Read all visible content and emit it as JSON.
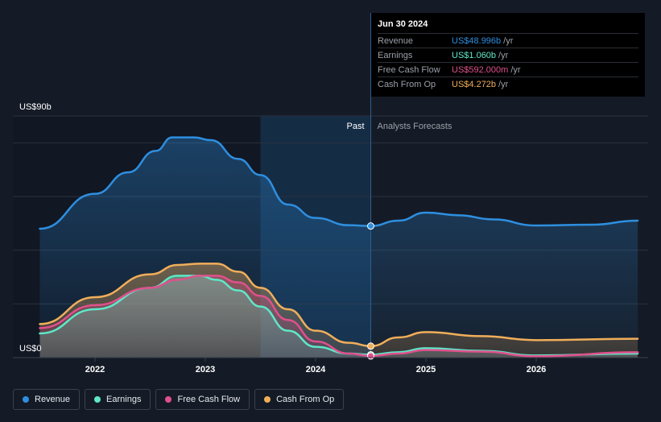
{
  "tooltip": {
    "date": "Jun 30 2024",
    "rows": [
      {
        "label": "Revenue",
        "value": "US$48.996b",
        "unit": "/yr",
        "color": "#2e8fe0"
      },
      {
        "label": "Earnings",
        "value": "US$1.060b",
        "unit": "/yr",
        "color": "#5ee8c8"
      },
      {
        "label": "Free Cash Flow",
        "value": "US$592.000m",
        "unit": "/yr",
        "color": "#e0508c"
      },
      {
        "label": "Cash From Op",
        "value": "US$4.272b",
        "unit": "/yr",
        "color": "#f0ae5a"
      }
    ]
  },
  "labels": {
    "past": "Past",
    "forecast": "Analysts Forecasts"
  },
  "legend": [
    {
      "label": "Revenue",
      "color": "#2e8fe0"
    },
    {
      "label": "Earnings",
      "color": "#5ee8c8"
    },
    {
      "label": "Free Cash Flow",
      "color": "#e0508c"
    },
    {
      "label": "Cash From Op",
      "color": "#f0ae5a"
    }
  ],
  "chart_data": {
    "type": "line",
    "x_range": [
      2021.5,
      2026.92
    ],
    "ylim": [
      0,
      90
    ],
    "y_tick_labels": [
      {
        "value": 90,
        "label": "US$90b"
      },
      {
        "value": 0,
        "label": "US$0"
      }
    ],
    "x_ticks": [
      2022,
      2023,
      2024,
      2025,
      2026
    ],
    "x_tick_labels": [
      "2022",
      "2023",
      "2024",
      "2025",
      "2026"
    ],
    "grid": true,
    "past_forecast_divider": 2024.5,
    "highlight_start": 2023.5,
    "series": [
      {
        "name": "Revenue",
        "color": "#2e8fe0",
        "filled": true,
        "x": [
          2021.5,
          2022.0,
          2022.3,
          2022.55,
          2022.7,
          2022.9,
          2023.05,
          2023.3,
          2023.5,
          2023.75,
          2024.0,
          2024.3,
          2024.5,
          2024.75,
          2025.0,
          2025.3,
          2025.6,
          2026.0,
          2026.5,
          2026.92
        ],
        "y": [
          48,
          61,
          69,
          77,
          82,
          82,
          81,
          74,
          68,
          57,
          52,
          49.3,
          49,
          51,
          54,
          53,
          51.5,
          49.2,
          49.5,
          51
        ]
      },
      {
        "name": "Earnings",
        "color": "#5ee8c8",
        "filled": true,
        "x": [
          2021.5,
          2022.0,
          2022.5,
          2022.75,
          2022.95,
          2023.1,
          2023.3,
          2023.5,
          2023.75,
          2024.0,
          2024.3,
          2024.5,
          2024.75,
          2025.0,
          2025.5,
          2026.0,
          2026.92
        ],
        "y": [
          9,
          18,
          26,
          30.5,
          30.5,
          29,
          25,
          19,
          10,
          4,
          1.5,
          1.06,
          2,
          3.5,
          2.5,
          0.8,
          1.5
        ]
      },
      {
        "name": "Free Cash Flow",
        "color": "#e0508c",
        "filled": true,
        "x": [
          2021.5,
          2022.0,
          2022.5,
          2022.75,
          2022.95,
          2023.1,
          2023.3,
          2023.5,
          2023.75,
          2024.0,
          2024.3,
          2024.5,
          2024.75,
          2025.0,
          2025.5,
          2026.0,
          2026.92
        ],
        "y": [
          11,
          19.5,
          26,
          29,
          30.5,
          30.5,
          28,
          23,
          14,
          6,
          1.5,
          0.59,
          1.5,
          2.8,
          2.2,
          0.5,
          2
        ]
      },
      {
        "name": "Cash From Op",
        "color": "#f0ae5a",
        "filled": true,
        "x": [
          2021.5,
          2022.0,
          2022.5,
          2022.75,
          2022.95,
          2023.1,
          2023.3,
          2023.5,
          2023.75,
          2024.0,
          2024.3,
          2024.5,
          2024.75,
          2025.0,
          2025.5,
          2026.0,
          2026.92
        ],
        "y": [
          12.5,
          22.5,
          31,
          34.5,
          35,
          35,
          32,
          26,
          18,
          10,
          5.5,
          4.27,
          7.5,
          9.5,
          8,
          6.5,
          7
        ]
      }
    ]
  }
}
